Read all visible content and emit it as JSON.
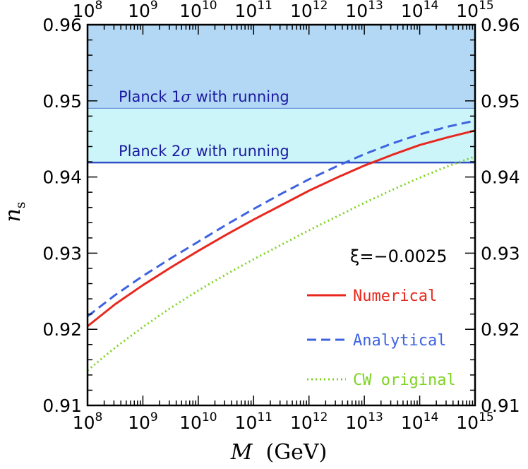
{
  "chart_data": {
    "type": "line",
    "xscale": "log10",
    "xlim_exponent": [
      8,
      15
    ],
    "ylim": [
      0.91,
      0.96
    ],
    "x_tick_base": "10",
    "x_tick_exponents": [
      "8",
      "9",
      "10",
      "11",
      "12",
      "13",
      "14",
      "15"
    ],
    "y_ticks": [
      "0.91",
      "0.92",
      "0.93",
      "0.94",
      "0.95",
      "0.96"
    ],
    "y_tick_values": [
      0.91,
      0.92,
      0.93,
      0.94,
      0.95,
      0.96
    ],
    "xlabel": {
      "symbol": "M",
      "unit": "(GeV)"
    },
    "ylabel": {
      "symbol": "n",
      "subscript": "s"
    },
    "annotation": "ξ=−0.0025",
    "bands": [
      {
        "name": "Planck 1σ",
        "label_prefix": "Planck 1",
        "label_sigma": "σ",
        "label_suffix": " with running",
        "lower": 0.949,
        "upper": 0.96,
        "color": "#b3d8f5",
        "edge_color": "#3050c8"
      },
      {
        "name": "Planck 2σ",
        "label_prefix": "Planck 2",
        "label_sigma": "σ",
        "label_suffix": " with running",
        "lower": 0.9419,
        "upper": 0.949,
        "color": "#ccf5f9",
        "edge_color": "#3050c8"
      }
    ],
    "series": [
      {
        "name": "Numerical",
        "color": "#e8281e",
        "dash": "solid",
        "x_exponent": [
          8,
          8.5,
          9,
          9.5,
          10,
          10.5,
          11,
          11.5,
          12,
          12.5,
          13,
          13.5,
          14,
          14.5,
          15
        ],
        "values": [
          0.9204,
          0.9233,
          0.9258,
          0.9281,
          0.9303,
          0.9324,
          0.9344,
          0.9363,
          0.9382,
          0.9399,
          0.9415,
          0.9429,
          0.9442,
          0.9452,
          0.9461
        ]
      },
      {
        "name": "Analytical",
        "color": "#3e63e0",
        "dash": "dashed",
        "x_exponent": [
          8,
          8.5,
          9,
          9.5,
          10,
          10.5,
          11,
          11.5,
          12,
          12.5,
          13,
          13.5,
          14,
          14.5,
          15
        ],
        "values": [
          0.9217,
          0.9245,
          0.927,
          0.9293,
          0.9315,
          0.9337,
          0.9358,
          0.9378,
          0.9397,
          0.9414,
          0.943,
          0.9444,
          0.9456,
          0.9466,
          0.9474
        ]
      },
      {
        "name": "CW original",
        "color": "#7ed321",
        "dash": "dotted",
        "x_exponent": [
          8,
          8.5,
          9,
          9.5,
          10,
          10.5,
          11,
          11.5,
          12,
          12.5,
          13,
          13.5,
          14,
          14.5,
          15
        ],
        "values": [
          0.9146,
          0.9176,
          0.9203,
          0.9228,
          0.9251,
          0.9272,
          0.9292,
          0.9311,
          0.933,
          0.9348,
          0.9366,
          0.9383,
          0.9399,
          0.9414,
          0.9427
        ]
      }
    ]
  }
}
